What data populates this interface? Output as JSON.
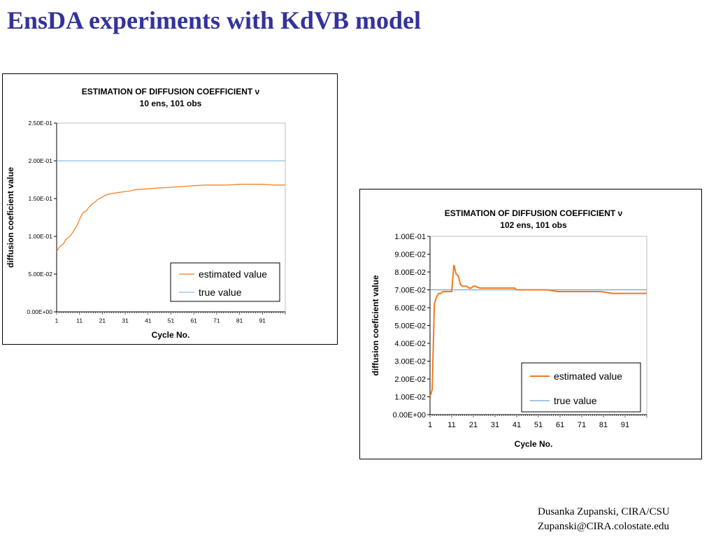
{
  "slide": {
    "title": "EnsDA experiments with KdVB model",
    "footer_name": "Dusanka Zupanski,  CIRA/CSU",
    "footer_email": "Zupanski@CIRA.colostate.edu"
  },
  "chart_data": [
    {
      "type": "line",
      "title": "ESTIMATION OF DIFFUSION COEFFICIENT ν",
      "subtitle": "10 ens, 101 obs",
      "xlabel": "Cycle No.",
      "ylabel": "diffusion coeficient value",
      "xlim": [
        1,
        101
      ],
      "ylim": [
        0,
        0.25
      ],
      "yticks": [
        0,
        0.05,
        0.1,
        0.15,
        0.2,
        0.25
      ],
      "ytick_labels": [
        "0.00E+00",
        "5.00E-02",
        "1.00E-01",
        "1.50E-01",
        "2.00E-01",
        "2.50E-01"
      ],
      "xtick_labels": [
        "1",
        "11",
        "21",
        "31",
        "41",
        "51",
        "61",
        "71",
        "81",
        "91"
      ],
      "grid": false,
      "legend_position": "bottom-right",
      "series": [
        {
          "name": "estimated value",
          "color": "#f07a1c",
          "x": [
            1,
            2,
            3,
            4,
            5,
            6,
            7,
            8,
            9,
            10,
            11,
            12,
            13,
            14,
            15,
            16,
            17,
            18,
            19,
            20,
            22,
            24,
            26,
            28,
            30,
            33,
            36,
            41,
            46,
            51,
            56,
            61,
            66,
            71,
            76,
            81,
            86,
            91,
            96,
            101
          ],
          "y": [
            0.08,
            0.085,
            0.088,
            0.09,
            0.096,
            0.098,
            0.101,
            0.105,
            0.11,
            0.115,
            0.122,
            0.129,
            0.132,
            0.134,
            0.138,
            0.141,
            0.144,
            0.146,
            0.149,
            0.15,
            0.154,
            0.156,
            0.157,
            0.158,
            0.159,
            0.16,
            0.162,
            0.163,
            0.164,
            0.165,
            0.166,
            0.167,
            0.168,
            0.168,
            0.168,
            0.169,
            0.169,
            0.169,
            0.168,
            0.168
          ]
        },
        {
          "name": "true value",
          "color": "#8cbfe4",
          "x": [
            1,
            101
          ],
          "y": [
            0.2,
            0.2
          ]
        }
      ]
    },
    {
      "type": "line",
      "title": "ESTIMATION OF DIFFUSION COEFFICIENT ν",
      "subtitle": "102 ens, 101 obs",
      "xlabel": "Cycle No.",
      "ylabel": "diffusion coeficient value",
      "xlim": [
        1,
        101
      ],
      "ylim": [
        0,
        0.1
      ],
      "yticks": [
        0,
        0.01,
        0.02,
        0.03,
        0.04,
        0.05,
        0.06,
        0.07,
        0.08,
        0.09,
        0.1
      ],
      "ytick_labels": [
        "0.00E+00",
        "1.00E-02",
        "2.00E-02",
        "3.00E-02",
        "4.00E-02",
        "5.00E-02",
        "6.00E-02",
        "7.00E-02",
        "8.00E-02",
        "9.00E-02",
        "1.00E-01"
      ],
      "xtick_labels": [
        "1",
        "11",
        "21",
        "31",
        "41",
        "51",
        "61",
        "71",
        "81",
        "91"
      ],
      "grid": false,
      "legend_position": "bottom-right",
      "series": [
        {
          "name": "estimated value",
          "color": "#f07a1c",
          "x": [
            1,
            2,
            3,
            4,
            5,
            6,
            7,
            8,
            9,
            10,
            11,
            12,
            13,
            14,
            15,
            16,
            17,
            18,
            19,
            20,
            21,
            22,
            24,
            26,
            28,
            30,
            33,
            36,
            40,
            41,
            45,
            50,
            55,
            60,
            65,
            70,
            75,
            80,
            85,
            90,
            95,
            101
          ],
          "y": [
            0.01,
            0.014,
            0.062,
            0.066,
            0.068,
            0.068,
            0.069,
            0.069,
            0.069,
            0.069,
            0.069,
            0.084,
            0.079,
            0.078,
            0.073,
            0.072,
            0.072,
            0.072,
            0.071,
            0.071,
            0.072,
            0.072,
            0.071,
            0.071,
            0.071,
            0.071,
            0.071,
            0.071,
            0.071,
            0.07,
            0.07,
            0.07,
            0.07,
            0.069,
            0.069,
            0.069,
            0.069,
            0.069,
            0.068,
            0.068,
            0.068,
            0.068
          ]
        },
        {
          "name": "true value",
          "color": "#6fa2d6",
          "x": [
            1,
            101
          ],
          "y": [
            0.07,
            0.07
          ]
        }
      ]
    }
  ]
}
